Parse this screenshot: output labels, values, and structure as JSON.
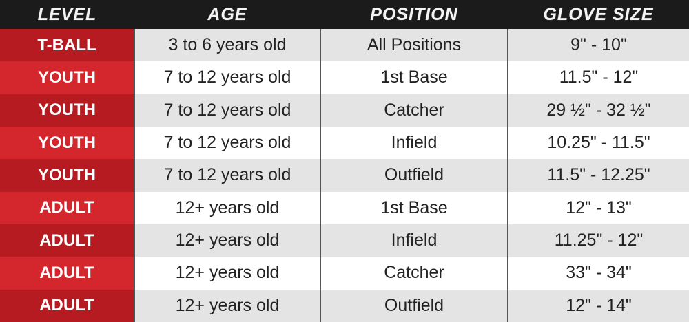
{
  "headers": [
    "LEVEL",
    "AGE",
    "POSITION",
    "GLOVE SIZE"
  ],
  "colors": {
    "header_bg": "#1b1b1b",
    "level_dark": "#b51b21",
    "level_light": "#d3272d",
    "row_gray": "#e4e4e4",
    "row_white": "#ffffff"
  },
  "rows": [
    [
      "T-BALL",
      "3 to 6 years old",
      "All Positions",
      "9\" - 10\""
    ],
    [
      "YOUTH",
      "7 to 12 years old",
      "1st Base",
      "11.5\" - 12\""
    ],
    [
      "YOUTH",
      "7 to 12 years old",
      "Catcher",
      "29 ½\" - 32 ½\""
    ],
    [
      "YOUTH",
      "7 to 12 years old",
      "Infield",
      "10.25\" - 11.5\""
    ],
    [
      "YOUTH",
      "7 to 12 years old",
      "Outfield",
      "11.5\" - 12.25\""
    ],
    [
      "ADULT",
      "12+ years old",
      "1st Base",
      "12\" - 13\""
    ],
    [
      "ADULT",
      "12+ years old",
      "Infield",
      "11.25\" - 12\""
    ],
    [
      "ADULT",
      "12+ years old",
      "Catcher",
      "33\" - 34\""
    ],
    [
      "ADULT",
      "12+ years old",
      "Outfield",
      "12\" - 14\""
    ]
  ]
}
